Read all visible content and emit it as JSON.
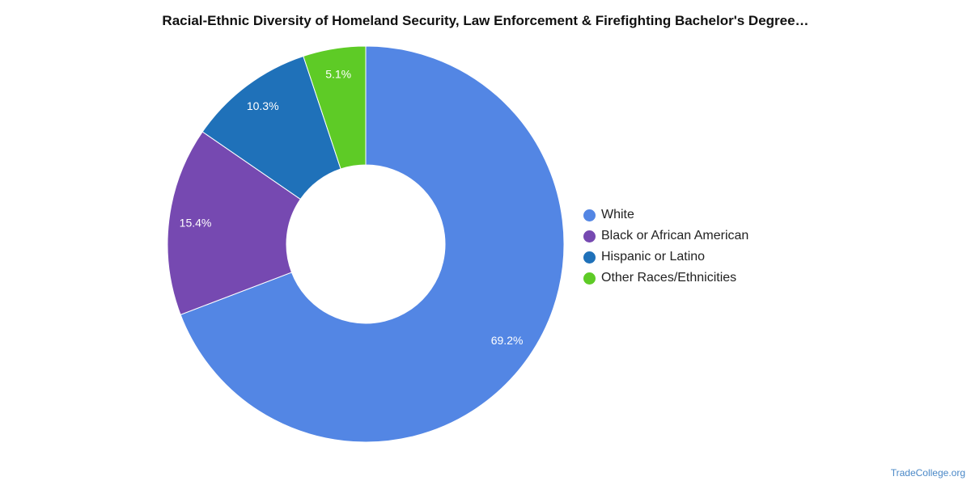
{
  "chart_data": {
    "type": "pie",
    "variant": "donut",
    "title": "Racial-Ethnic Diversity of Homeland Security, Law Enforcement & Firefighting Bachelor's Degree…",
    "slices": [
      {
        "label": "White",
        "value": 69.2,
        "value_label": "69.2%",
        "color": "#5386e4"
      },
      {
        "label": "Black or African American",
        "value": 15.4,
        "value_label": "15.4%",
        "color": "#7649b1"
      },
      {
        "label": "Hispanic or Latino",
        "value": 10.3,
        "value_label": "10.3%",
        "color": "#1f71b9"
      },
      {
        "label": "Other Races/Ethnicities",
        "value": 5.1,
        "value_label": "5.1%",
        "color": "#5ecb26"
      }
    ],
    "legend_position": "right"
  },
  "footer": {
    "credit": "TradeCollege.org"
  }
}
